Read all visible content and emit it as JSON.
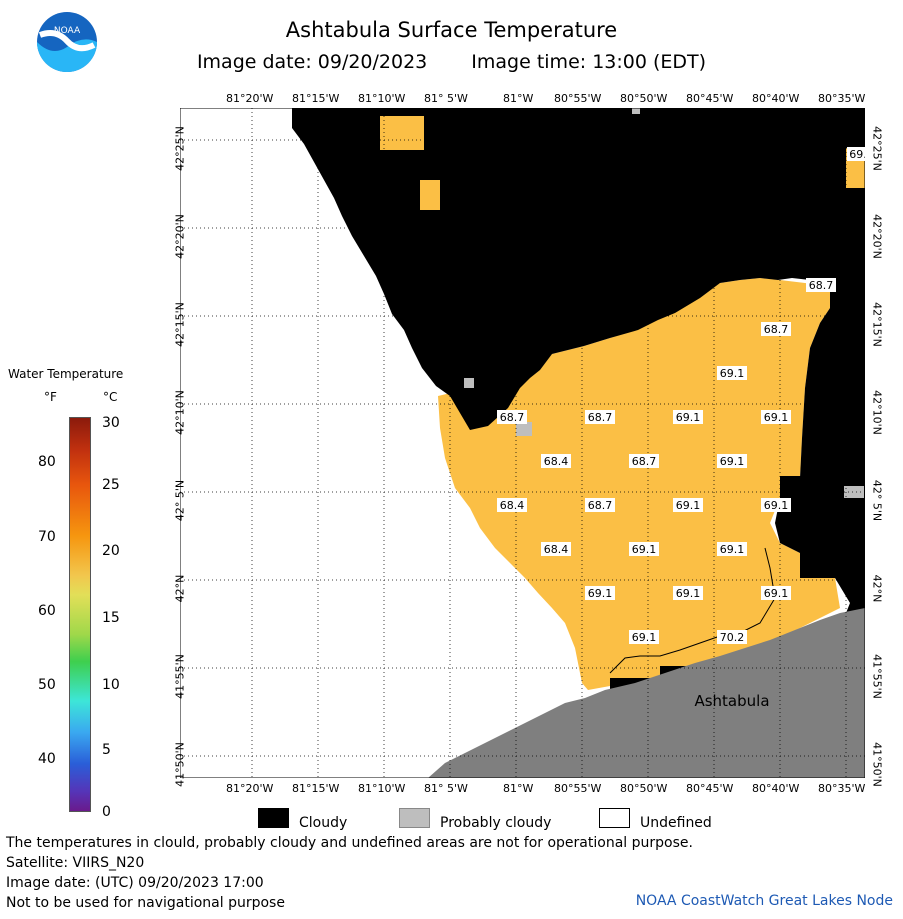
{
  "header": {
    "title": "Ashtabula Surface Temperature",
    "image_date": "Image date: 09/20/2023",
    "image_time": "Image time: 13:00 (EDT)",
    "logo_text": "NOAA"
  },
  "map": {
    "lon_labels": [
      "81°20'W",
      "81°15'W",
      "81°10'W",
      "81° 5'W",
      "81°W",
      "80°55'W",
      "80°50'W",
      "80°45'W",
      "80°40'W",
      "80°35'W"
    ],
    "lat_labels": [
      "42°25'N",
      "42°20'N",
      "42°15'N",
      "42°10'N",
      "42° 5'N",
      "42°N",
      "41°55'N",
      "41°50'N"
    ],
    "place_label": "Ashtabula",
    "temperature_labels": [
      "69.",
      "68.7",
      "68.7",
      "69.1",
      "68.7",
      "68.7",
      "69.1",
      "69.1",
      "68.4",
      "68.7",
      "69.1",
      "68.4",
      "68.7",
      "69.1",
      "69.1",
      "68.4",
      "69.1",
      "69.1",
      "69.1",
      "69.1",
      "69.1",
      "69.1",
      "70.2"
    ],
    "colors": {
      "land": "#7f7f7f",
      "cloudy": "#000000",
      "probably_cloudy": "#bebebe",
      "undefined": "#ffffff",
      "water_warm": "#fbbf45"
    }
  },
  "legend": {
    "title": "Water Temperature",
    "unit_f": "°F",
    "unit_c": "°C",
    "f_ticks": [
      "80",
      "70",
      "60",
      "50",
      "40"
    ],
    "c_ticks": [
      "30",
      "25",
      "20",
      "15",
      "10",
      "5",
      "0"
    ]
  },
  "key": {
    "cloudy": "Cloudy",
    "probably_cloudy": "Probably cloudy",
    "undefined": "Undefined"
  },
  "footer": {
    "disclaimer": "The temperatures in clould, probably cloudy and undefined areas are not for operational purpose.",
    "satellite": "Satellite: VIIRS_N20",
    "utc_date": "Image date: (UTC) 09/20/2023  17:00",
    "nav_warning": "Not to be used for navigational purpose",
    "credit": "NOAA CoastWatch Great Lakes Node"
  }
}
